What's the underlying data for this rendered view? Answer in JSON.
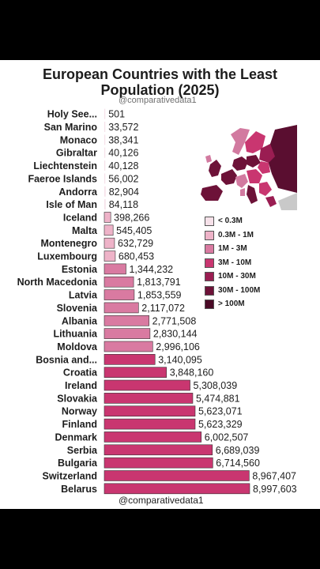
{
  "header": {
    "title_line1": "European Countries with the Least",
    "title_line2": "Population (2025)",
    "handle_top": "@comparativedata1",
    "handle_bottom": "@comparativedata1"
  },
  "legend": [
    {
      "label": "< 0.3M",
      "color": "#f6e1e9"
    },
    {
      "label": "0.3M - 1M",
      "color": "#eeb3c8"
    },
    {
      "label": "1M - 3M",
      "color": "#d97aa1"
    },
    {
      "label": "3M - 10M",
      "color": "#c93670"
    },
    {
      "label": "10M - 30M",
      "color": "#9a1d52"
    },
    {
      "label": "30M - 100M",
      "color": "#6d1238"
    },
    {
      "label": "> 100M",
      "color": "#4a0a26"
    }
  ],
  "chart_data": {
    "type": "bar",
    "orientation": "horizontal",
    "categories": [
      "Holy See...",
      "San Marino",
      "Monaco",
      "Gibraltar",
      "Liechtenstein",
      "Faeroe Islands",
      "Andorra",
      "Isle of Man",
      "Iceland",
      "Malta",
      "Montenegro",
      "Luxembourg",
      "Estonia",
      "North Macedonia",
      "Latvia",
      "Slovenia",
      "Albania",
      "Lithuania",
      "Moldova",
      "Bosnia and...",
      "Croatia",
      "Ireland",
      "Slovakia",
      "Norway",
      "Finland",
      "Denmark",
      "Serbia",
      "Bulgaria",
      "Switzerland",
      "Belarus"
    ],
    "values": [
      501,
      33572,
      38341,
      40126,
      40128,
      56002,
      82904,
      84118,
      398266,
      545405,
      632729,
      680453,
      1344232,
      1813791,
      1853559,
      2117072,
      2771508,
      2830144,
      2996106,
      3140095,
      3848160,
      5308039,
      5474881,
      5623071,
      5623329,
      6002507,
      6689039,
      6714560,
      8967407,
      8997603
    ],
    "value_labels": [
      "501",
      "33,572",
      "38,341",
      "40,126",
      "40,128",
      "56,002",
      "82,904",
      "84,118",
      "398,266",
      "545,405",
      "632,729",
      "680,453",
      "1,344,232",
      "1,813,791",
      "1,853,559",
      "2,117,072",
      "2,771,508",
      "2,830,144",
      "2,996,106",
      "3,140,095",
      "3,848,160",
      "5,308,039",
      "5,474,881",
      "5,623,071",
      "5,623,329",
      "6,002,507",
      "6,689,039",
      "6,714,560",
      "8,967,407",
      "8,997,603"
    ],
    "title": "European Countries with the Least Population (2025)",
    "xlabel": "",
    "ylabel": "",
    "color_bins": [
      300000,
      1000000,
      3000000,
      10000000,
      30000000,
      100000000
    ]
  }
}
